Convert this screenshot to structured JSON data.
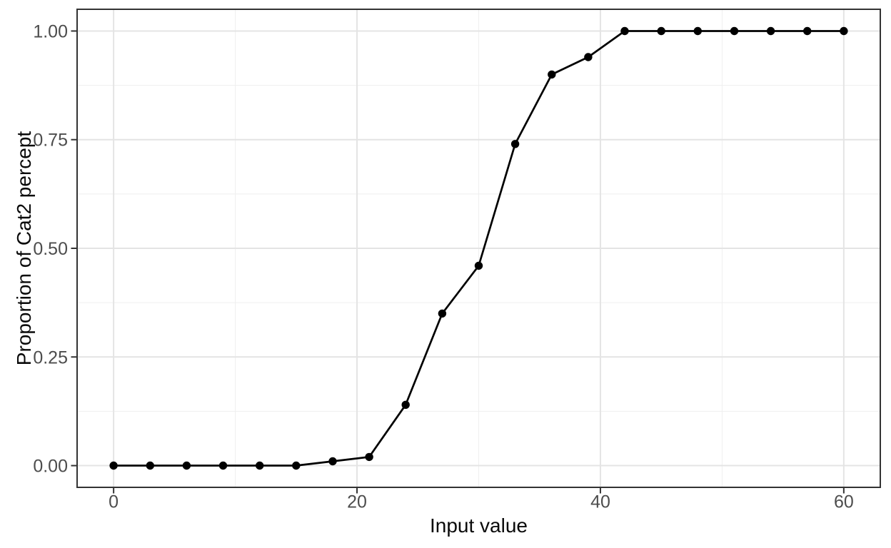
{
  "chart_data": {
    "type": "line",
    "title": "",
    "xlabel": "Input value",
    "ylabel": "Proportion of Cat2 percept",
    "x": [
      0,
      3,
      6,
      9,
      12,
      15,
      18,
      21,
      24,
      27,
      30,
      33,
      36,
      39,
      42,
      45,
      48,
      51,
      54,
      57,
      60
    ],
    "series": [
      {
        "name": "proportion_cat2",
        "values": [
          0.0,
          0.0,
          0.0,
          0.0,
          0.0,
          0.0,
          0.01,
          0.02,
          0.14,
          0.35,
          0.46,
          0.74,
          0.9,
          0.94,
          1.0,
          1.0,
          1.0,
          1.0,
          1.0,
          1.0,
          1.0
        ]
      }
    ],
    "xlim": [
      0,
      60
    ],
    "ylim": [
      0,
      1
    ],
    "x_ticks": [
      0,
      20,
      40,
      60
    ],
    "x_tick_labels": [
      "0",
      "20",
      "40",
      "60"
    ],
    "y_ticks": [
      0.0,
      0.25,
      0.5,
      0.75,
      1.0
    ],
    "y_tick_labels": [
      "0.00",
      "0.25",
      "0.50",
      "0.75",
      "1.00"
    ],
    "x_minor_gridlines": [
      10,
      30,
      50
    ],
    "y_minor_gridlines": [
      0.125,
      0.375,
      0.625,
      0.875
    ],
    "grid": true,
    "legend_position": "none",
    "marker": "filled-circle",
    "colors": {
      "line": "#000000",
      "point": "#000000",
      "major_grid": "#e4e4e4",
      "minor_grid": "#efefef",
      "panel_border": "#333333",
      "tick_mark": "#333333",
      "tick_label": "#4d4d4d",
      "axis_title": "#0a0a0a",
      "panel_background": "#ffffff"
    }
  }
}
